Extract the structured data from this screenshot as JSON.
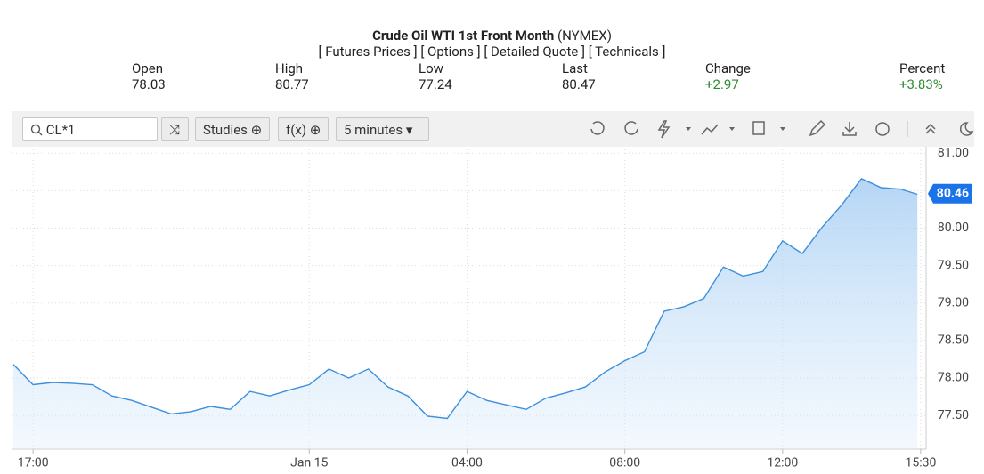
{
  "header": {
    "title": "Crude Oil WTI 1st Front Month",
    "exchange": "(NYMEX)",
    "links": [
      "[ Futures Prices ]",
      "[ Options ]",
      "[ Detailed Quote ]",
      "[ Technicals ]"
    ]
  },
  "quote": {
    "labels": [
      "Open",
      "High",
      "Low",
      "Last",
      "Change",
      "Percent"
    ],
    "values": [
      78.03,
      80.77,
      77.24,
      80.47,
      "+2.97",
      "+3.83%"
    ]
  },
  "toolbar": {
    "symbol": "CL*1",
    "studies": "Studies",
    "function": "f(x)",
    "interval": "5 minutes"
  },
  "chart_data": {
    "type": "area-line",
    "color": "#3d8fdc",
    "x": [
      "16:30",
      "17:00",
      "17:30",
      "18:00",
      "18:30",
      "19:00",
      "19:30",
      "20:00",
      "20:30",
      "21:00",
      "21:30",
      "22:00",
      "22:30",
      "23:00",
      "23:30",
      "00:00",
      "00:30",
      "01:00",
      "01:30",
      "02:00",
      "02:30",
      "03:00",
      "03:30",
      "04:00",
      "04:30",
      "05:00",
      "05:30",
      "06:00",
      "06:30",
      "07:00",
      "07:30",
      "08:00",
      "08:30",
      "09:00",
      "09:30",
      "10:00",
      "10:30",
      "11:00",
      "11:30",
      "12:00",
      "12:30",
      "13:00",
      "13:30",
      "14:00",
      "14:30",
      "15:00",
      "15:25"
    ],
    "values": [
      78.18,
      77.91,
      77.94,
      77.93,
      77.91,
      77.76,
      77.7,
      77.61,
      77.52,
      77.55,
      77.62,
      77.58,
      77.82,
      77.76,
      77.84,
      77.91,
      78.12,
      78.0,
      78.12,
      77.88,
      77.76,
      77.49,
      77.46,
      77.82,
      77.7,
      77.64,
      77.58,
      77.73,
      77.8,
      77.88,
      78.08,
      78.23,
      78.35,
      78.89,
      78.95,
      79.06,
      79.48,
      79.36,
      79.42,
      79.83,
      79.66,
      80.01,
      80.31,
      80.66,
      80.54,
      80.52,
      80.45
    ],
    "last_price": 80.46,
    "ylim": [
      77.05,
      81.05
    ],
    "yticks": [
      {
        "value": 77.5,
        "label": "77.50"
      },
      {
        "value": 78,
        "label": "78.00"
      },
      {
        "value": 78.5,
        "label": "78.50"
      },
      {
        "value": 79,
        "label": "79.00"
      },
      {
        "value": 79.5,
        "label": "79.50"
      },
      {
        "value": 80,
        "label": "80.00"
      },
      {
        "value": 80.5,
        "label": "80.50"
      },
      {
        "value": 81,
        "label": "81.00"
      }
    ],
    "xticks": [
      "17:00",
      {
        "value": "00:00",
        "label": "Jan 15"
      },
      "04:00",
      "08:00",
      "12:00",
      "15:30"
    ],
    "grid": true
  }
}
